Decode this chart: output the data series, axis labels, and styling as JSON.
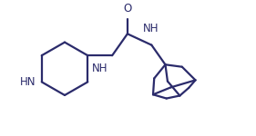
{
  "background_color": "#ffffff",
  "line_color": "#2b2b6b",
  "line_width": 1.6,
  "fig_width": 2.81,
  "fig_height": 1.5,
  "dpi": 100,
  "font_size": 8.5,
  "font_color": "#2b2b6b",
  "xlim": [
    0,
    10
  ],
  "ylim": [
    0,
    5.34
  ]
}
